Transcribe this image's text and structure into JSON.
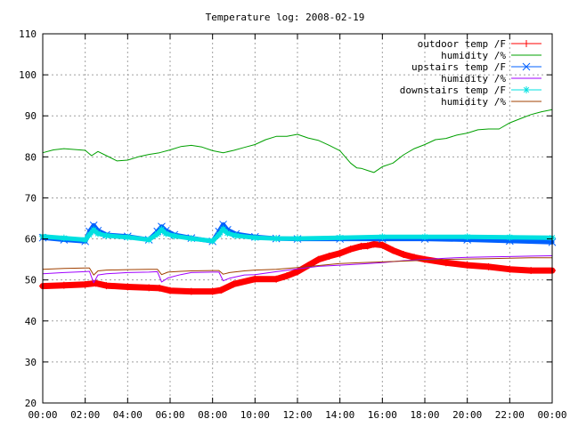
{
  "chart_data": {
    "type": "line",
    "title": "Temperature log: 2008-02-19",
    "xlabel": "",
    "ylabel": "",
    "xlim": [
      0,
      24
    ],
    "ylim": [
      20,
      110
    ],
    "grid": true,
    "legend_position": "top-right",
    "x_ticks": [
      "00:00",
      "02:00",
      "04:00",
      "06:00",
      "08:00",
      "10:00",
      "12:00",
      "14:00",
      "16:00",
      "18:00",
      "20:00",
      "22:00",
      "00:00"
    ],
    "y_ticks": [
      20,
      30,
      40,
      50,
      60,
      70,
      80,
      90,
      100,
      110
    ],
    "series": [
      {
        "name": "outdoor temp /F",
        "color": "#ff0000",
        "marker": "plus",
        "style": "thick",
        "x": [
          0,
          1,
          2,
          2.5,
          3,
          4,
          5,
          5.5,
          6,
          7,
          8,
          8.4,
          9,
          10,
          11,
          11.5,
          12,
          12.5,
          13,
          13.5,
          14,
          14.5,
          15,
          15.3,
          15.6,
          16,
          16.5,
          17,
          17.5,
          18,
          19,
          20,
          21,
          22,
          23,
          24
        ],
        "y": [
          48.5,
          48.7,
          48.9,
          49.2,
          48.6,
          48.3,
          48.1,
          48,
          47.4,
          47.2,
          47.2,
          47.5,
          49,
          50.2,
          50.2,
          51,
          52,
          53.5,
          55,
          55.8,
          56.5,
          57.5,
          58.2,
          58.3,
          58.7,
          58.5,
          57.2,
          56.2,
          55.5,
          55,
          54.2,
          53.6,
          53.2,
          52.6,
          52.3,
          52.3
        ]
      },
      {
        "name": "humidity /%",
        "color": "#00a000",
        "marker": "none",
        "style": "thin",
        "x": [
          0,
          0.5,
          1,
          2,
          2.3,
          2.6,
          3,
          3.5,
          4,
          4.5,
          5,
          5.5,
          6,
          6.5,
          7,
          7.5,
          8,
          8.5,
          9,
          9.5,
          10,
          10.5,
          11,
          11.5,
          12,
          12.5,
          13,
          13.5,
          14,
          14.5,
          14.8,
          15,
          15.3,
          15.6,
          16,
          16.5,
          17,
          17.5,
          18,
          18.5,
          19,
          19.5,
          20,
          20.5,
          21,
          21.5,
          22,
          22.5,
          23,
          23.5,
          24
        ],
        "y": [
          81,
          81.7,
          82,
          81.6,
          80.3,
          81.3,
          80.3,
          79,
          79.2,
          80,
          80.6,
          81,
          81.7,
          82.5,
          82.8,
          82.4,
          81.5,
          81,
          81.6,
          82.3,
          83,
          84.2,
          85,
          85,
          85.5,
          84.6,
          84,
          82.8,
          81.5,
          78.5,
          77.3,
          77.2,
          76.7,
          76.2,
          77.6,
          78.5,
          80.5,
          82,
          83,
          84.2,
          84.5,
          85.3,
          85.8,
          86.6,
          86.8,
          86.8,
          88.3,
          89.3,
          90.3,
          91,
          91.5
        ]
      },
      {
        "name": "upstairs temp /F",
        "color": "#0060ff",
        "marker": "cross",
        "style": "thick",
        "x": [
          0,
          1,
          2,
          2.2,
          2.4,
          2.6,
          3,
          4,
          5,
          5.4,
          5.6,
          5.8,
          6.2,
          7,
          8,
          8.3,
          8.5,
          8.7,
          9.1,
          10,
          11,
          12,
          14,
          16,
          18,
          20,
          22,
          24
        ],
        "y": [
          60.3,
          59.8,
          59.4,
          61.8,
          63.3,
          62,
          61,
          60.6,
          59.8,
          61.8,
          63,
          62,
          61,
          60.2,
          59.4,
          61.8,
          63.5,
          62.2,
          61.2,
          60.5,
          60.1,
          60,
          60,
          60,
          60,
          59.8,
          59.5,
          59.2
        ]
      },
      {
        "name": "humidity /%",
        "color": "#a000ff",
        "marker": "none",
        "style": "thin",
        "x": [
          0,
          1,
          2,
          2.2,
          2.4,
          2.6,
          3,
          4,
          5,
          5.4,
          5.6,
          5.9,
          6.5,
          7,
          8,
          8.3,
          8.5,
          8.8,
          9.5,
          10,
          11,
          12,
          13,
          14,
          15,
          16,
          17,
          18,
          19,
          20,
          21,
          22,
          23,
          24
        ],
        "y": [
          51.5,
          51.8,
          52,
          52.1,
          49.3,
          51.2,
          51.5,
          51.8,
          51.9,
          52,
          49.5,
          50.5,
          51.3,
          51.8,
          51.9,
          51.9,
          49.8,
          50.4,
          51.2,
          51.3,
          52,
          52.7,
          53.3,
          53.6,
          53.9,
          54.2,
          54.7,
          55,
          55.3,
          55.5,
          55.6,
          55.7,
          55.8,
          55.9
        ]
      },
      {
        "name": "downstairs temp /F",
        "color": "#00e0e0",
        "marker": "star",
        "style": "thick",
        "x": [
          0,
          1,
          2,
          2.2,
          2.4,
          2.6,
          3,
          4,
          5,
          5.4,
          5.6,
          5.8,
          6.2,
          7,
          8,
          8.3,
          8.5,
          8.7,
          9.1,
          10,
          11,
          12,
          14,
          16,
          18,
          20,
          22,
          24
        ],
        "y": [
          60.6,
          60.2,
          59.8,
          61,
          62.2,
          61.3,
          60.8,
          60.4,
          59.8,
          61.2,
          62.3,
          61.3,
          60.7,
          60.1,
          59.5,
          61,
          62.4,
          61.4,
          60.8,
          60.3,
          60.1,
          60.1,
          60.3,
          60.5,
          60.5,
          60.5,
          60.4,
          60.3
        ]
      },
      {
        "name": "humidity /%",
        "color": "#a04000",
        "marker": "none",
        "style": "thin",
        "x": [
          0,
          1,
          2,
          2.2,
          2.4,
          2.6,
          3,
          4,
          5,
          5.4,
          5.6,
          5.9,
          6.5,
          7,
          8,
          8.3,
          8.5,
          8.8,
          9.5,
          10,
          11,
          12,
          13,
          14,
          15,
          16,
          17,
          18,
          19,
          20,
          21,
          22,
          23,
          24
        ],
        "y": [
          52.6,
          52.8,
          52.9,
          52.9,
          51.2,
          52.2,
          52.4,
          52.5,
          52.6,
          52.6,
          51.3,
          51.9,
          52.1,
          52.2,
          52.3,
          52.3,
          51.4,
          51.8,
          52.2,
          52.4,
          52.6,
          53,
          53.5,
          54,
          54.2,
          54.4,
          54.6,
          54.8,
          55,
          55.1,
          55.2,
          55.3,
          55.4,
          55.4
        ]
      }
    ]
  }
}
